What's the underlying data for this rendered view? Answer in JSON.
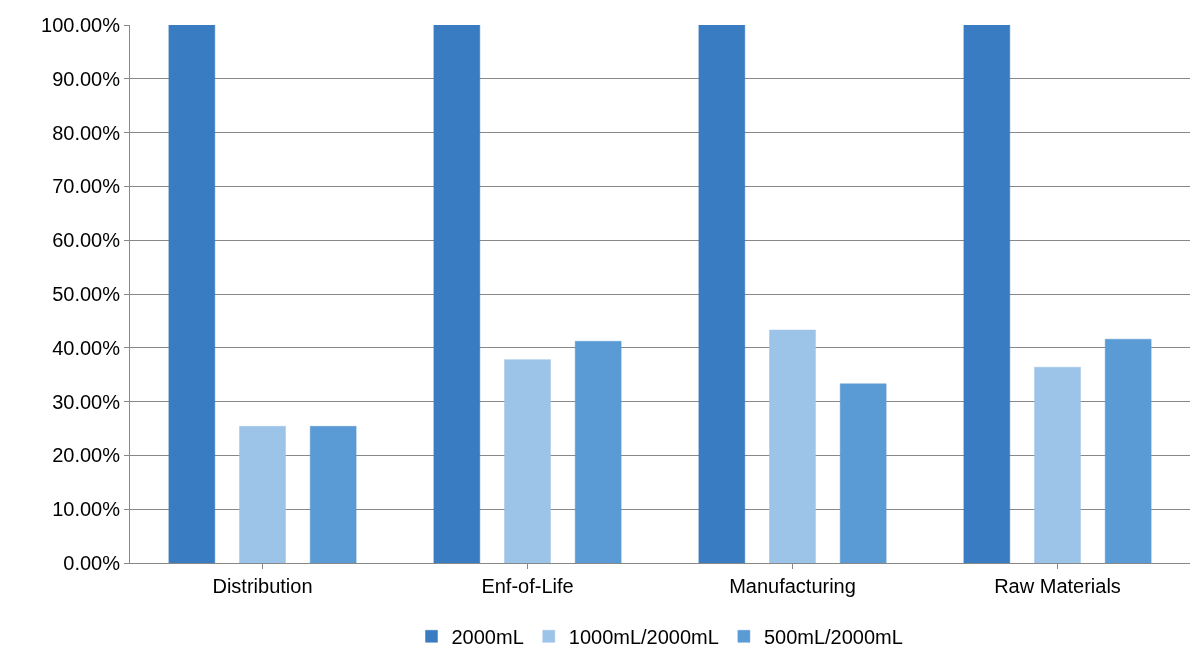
{
  "chart_data": {
    "type": "bar",
    "categories": [
      "Distribution",
      "Enf-of-Life",
      "Manufacturing",
      "Raw Materials"
    ],
    "series": [
      {
        "name": "2000mL",
        "color": "#3a7cc2",
        "values": [
          100,
          100,
          100,
          100
        ]
      },
      {
        "name": "1000mL/2000mL",
        "color": "#9cc3e8",
        "values": [
          25.4,
          37.8,
          43.3,
          36.4
        ]
      },
      {
        "name": "500mL/2000mL",
        "color": "#5b9bd5",
        "values": [
          25.4,
          41.2,
          33.3,
          41.6
        ]
      }
    ],
    "ylim": [
      0,
      100
    ],
    "yticks": [
      {
        "value": 0,
        "label": "0.00%"
      },
      {
        "value": 10,
        "label": "10.00%"
      },
      {
        "value": 20,
        "label": "20.00%"
      },
      {
        "value": 30,
        "label": "30.00%"
      },
      {
        "value": 40,
        "label": "40.00%"
      },
      {
        "value": 50,
        "label": "50.00%"
      },
      {
        "value": 60,
        "label": "60.00%"
      },
      {
        "value": 70,
        "label": "70.00%"
      },
      {
        "value": 80,
        "label": "80.00%"
      },
      {
        "value": 90,
        "label": "90.00%"
      },
      {
        "value": 100,
        "label": "100.00%"
      }
    ],
    "grid": "y",
    "legend": "bottom"
  }
}
